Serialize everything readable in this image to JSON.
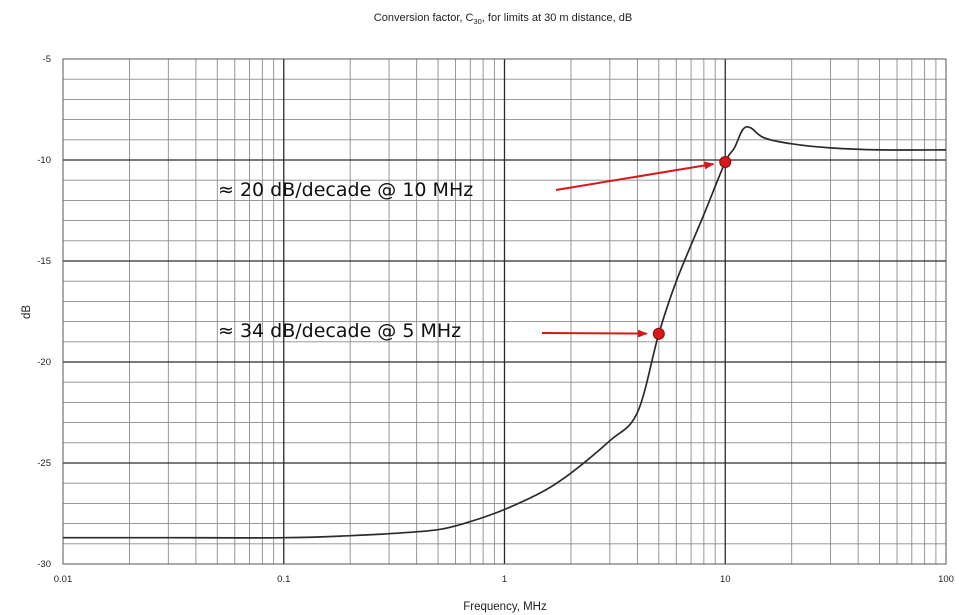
{
  "chart_data": {
    "type": "line",
    "title_prefix": "Conversion factor, C",
    "title_subscript": "30",
    "title_suffix": ", for limits at 30 m distance, dB",
    "xlabel": "Frequency, MHz",
    "ylabel": "dB",
    "x_scale": "log",
    "xlim": [
      0.01,
      100
    ],
    "ylim": [
      -30,
      -5
    ],
    "grid": true,
    "x_ticks": [
      {
        "value": 0.01,
        "label": "0.01"
      },
      {
        "value": 0.1,
        "label": "0.1"
      },
      {
        "value": 1,
        "label": "1"
      },
      {
        "value": 10,
        "label": "10"
      },
      {
        "value": 100,
        "label": "100"
      }
    ],
    "y_ticks": [
      {
        "value": -5,
        "label": "-5"
      },
      {
        "value": -10,
        "label": "-10"
      },
      {
        "value": -15,
        "label": "-15"
      },
      {
        "value": -20,
        "label": "-20"
      },
      {
        "value": -25,
        "label": "-25"
      },
      {
        "value": -30,
        "label": "-30"
      }
    ],
    "series": [
      {
        "x": [
          0.01,
          0.03,
          0.1,
          0.2,
          0.3,
          0.5,
          0.7,
          1,
          1.5,
          2,
          3,
          4,
          5,
          6,
          8,
          10,
          11,
          12,
          13,
          15,
          20,
          30,
          50,
          100
        ],
        "y": [
          -28.7,
          -28.7,
          -28.7,
          -28.6,
          -28.5,
          -28.3,
          -27.9,
          -27.3,
          -26.4,
          -25.5,
          -23.9,
          -22.5,
          -18.6,
          -16,
          -12.7,
          -10.1,
          -9.4,
          -8.5,
          -8.4,
          -8.9,
          -9.2,
          -9.4,
          -9.5,
          -9.5
        ]
      }
    ],
    "markers": [
      {
        "x": 10,
        "y": -10.1,
        "color": "#d71919"
      },
      {
        "x": 5,
        "y": -18.6,
        "color": "#d71919"
      }
    ],
    "annotations": [
      {
        "text": "≈ 20 dB/decade @ 10 MHz",
        "target_x": 10,
        "target_y": -10.1
      },
      {
        "text": "≈ 34 dB/decade @ 5 MHz",
        "target_x": 5,
        "target_y": -18.6
      }
    ]
  }
}
